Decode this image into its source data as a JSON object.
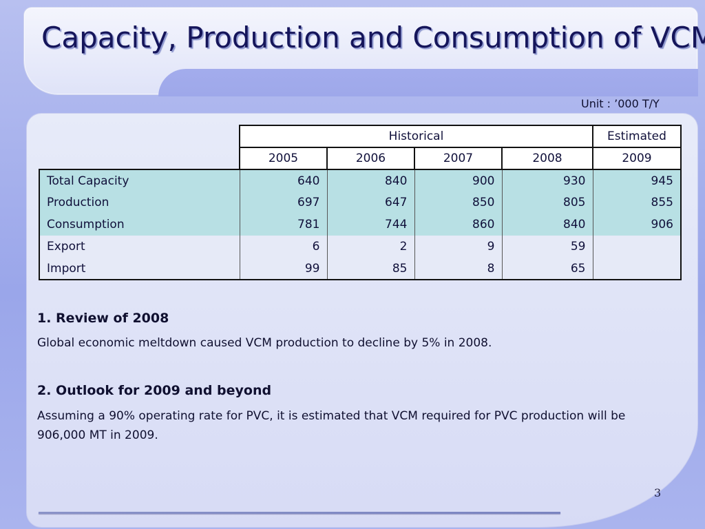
{
  "title": "Capacity, Production and Consumption of VCM",
  "unit": "Unit : ’000 T/Y",
  "table": {
    "group_headers": {
      "historical": "Historical",
      "estimated": "Estimated"
    },
    "years": [
      "2005",
      "2006",
      "2007",
      "2008",
      "2009"
    ],
    "rows": [
      {
        "label": "Total Capacity",
        "values": [
          "640",
          "840",
          "900",
          "930",
          "945"
        ]
      },
      {
        "label": "Production",
        "values": [
          "697",
          "647",
          "850",
          "805",
          "855"
        ]
      },
      {
        "label": "Consumption",
        "values": [
          "781",
          "744",
          "860",
          "840",
          "906"
        ]
      },
      {
        "label": "Export",
        "values": [
          "6",
          "2",
          "9",
          "59",
          ""
        ]
      },
      {
        "label": "Import",
        "values": [
          "99",
          "85",
          "8",
          "65",
          ""
        ]
      }
    ]
  },
  "sections": [
    {
      "heading": "1. Review of 2008",
      "body": "Global economic meltdown caused VCM production to decline by 5% in 2008."
    },
    {
      "heading": "2. Outlook for 2009 and beyond",
      "body": "Assuming a 90% operating rate for PVC, it is estimated that VCM required for PVC production will be 906,000 MT in 2009."
    }
  ],
  "page_number": "3"
}
